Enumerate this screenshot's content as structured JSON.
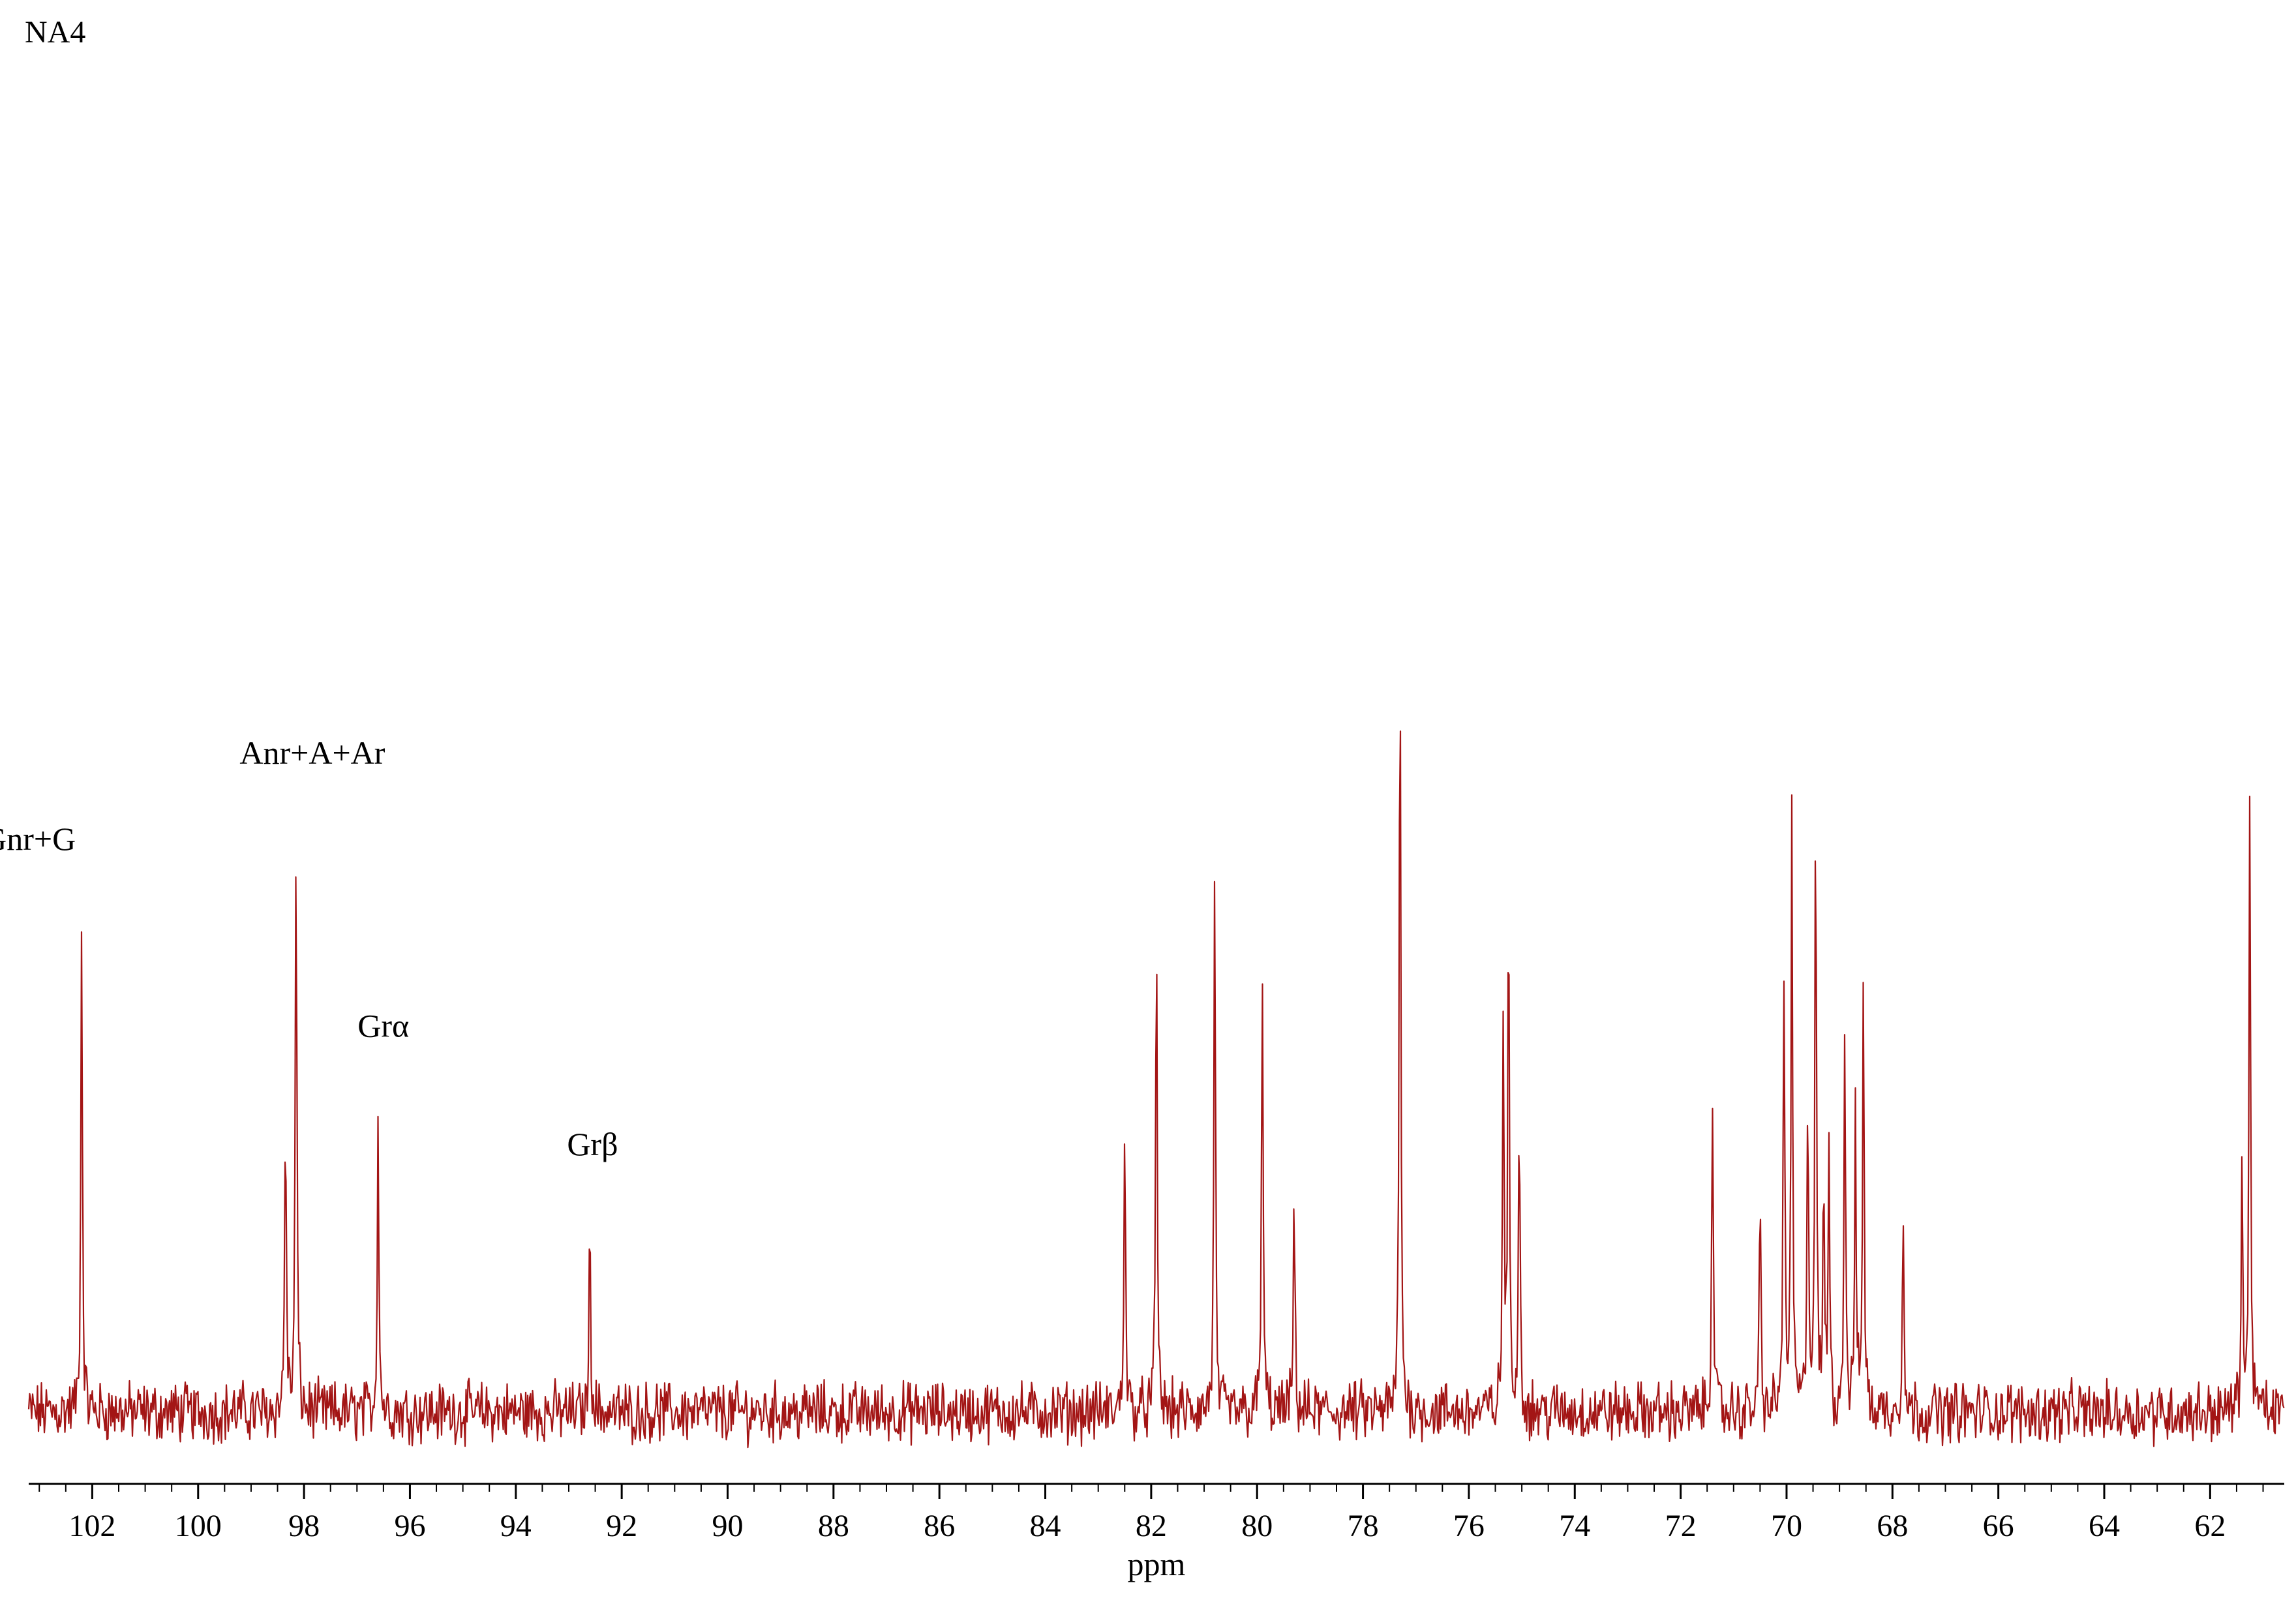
{
  "chart_data": {
    "type": "line",
    "title": "NA4",
    "xlabel": "ppm",
    "ylabel": "",
    "xlim": [
      103.2,
      60.6
    ],
    "ylim": [
      -0.05,
      1.0
    ],
    "x_reversed": true,
    "grid": false,
    "legend": "none",
    "line_color": "#a31515",
    "xticks": [
      102,
      100,
      98,
      96,
      94,
      92,
      90,
      88,
      86,
      84,
      82,
      80,
      78,
      76,
      74,
      72,
      70,
      68,
      66,
      64,
      62
    ],
    "xtick_labels": [
      "102",
      "100",
      "98",
      "96",
      "94",
      "92",
      "90",
      "88",
      "86",
      "84",
      "82",
      "80",
      "78",
      "76",
      "74",
      "72",
      "70",
      "68",
      "66",
      "64",
      "62"
    ],
    "series": [
      {
        "peaks": [
          {
            "x": 102.2,
            "y": 0.61
          },
          {
            "x": 98.35,
            "y": 0.39
          },
          {
            "x": 98.15,
            "y": 0.73
          },
          {
            "x": 96.6,
            "y": 0.38
          },
          {
            "x": 92.6,
            "y": 0.24
          },
          {
            "x": 82.5,
            "y": 0.37
          },
          {
            "x": 81.9,
            "y": 0.61
          },
          {
            "x": 80.8,
            "y": 0.66
          },
          {
            "x": 79.9,
            "y": 0.56
          },
          {
            "x": 79.3,
            "y": 0.27
          },
          {
            "x": 77.3,
            "y": 1.0
          },
          {
            "x": 75.35,
            "y": 0.49
          },
          {
            "x": 75.25,
            "y": 0.64
          },
          {
            "x": 75.05,
            "y": 0.4
          },
          {
            "x": 71.4,
            "y": 0.42
          },
          {
            "x": 70.5,
            "y": 0.27
          },
          {
            "x": 70.05,
            "y": 0.56
          },
          {
            "x": 69.9,
            "y": 0.73
          },
          {
            "x": 69.6,
            "y": 0.41
          },
          {
            "x": 69.45,
            "y": 0.76
          },
          {
            "x": 69.3,
            "y": 0.27
          },
          {
            "x": 69.2,
            "y": 0.34
          },
          {
            "x": 68.9,
            "y": 0.49
          },
          {
            "x": 68.7,
            "y": 0.36
          },
          {
            "x": 68.55,
            "y": 0.55
          },
          {
            "x": 67.8,
            "y": 0.26
          },
          {
            "x": 61.4,
            "y": 0.31
          },
          {
            "x": 61.25,
            "y": 0.77
          }
        ],
        "noise_amplitude": 0.03
      }
    ],
    "annotations": [
      {
        "text": "Gnr+G",
        "x": 102.2
      },
      {
        "text": "Anr+A+Ar",
        "x": 98.15
      },
      {
        "text": "Grα",
        "x": 96.6
      },
      {
        "text": "Grβ",
        "x": 92.6
      }
    ]
  }
}
